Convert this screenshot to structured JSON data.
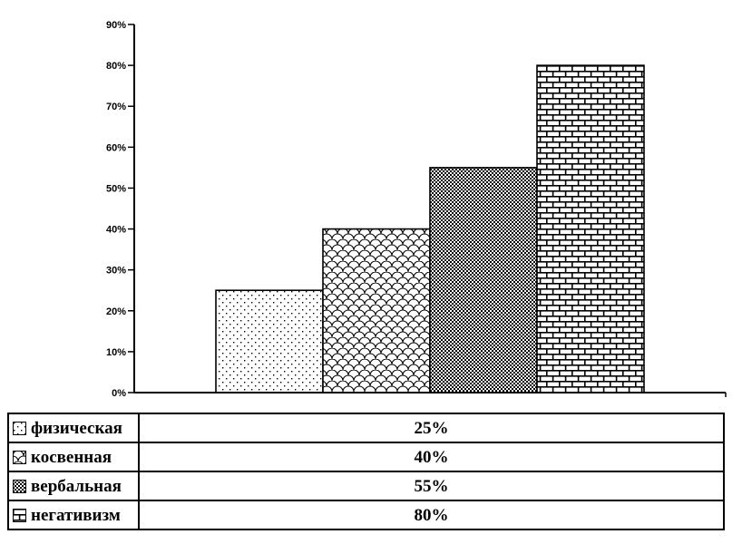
{
  "chart_data": {
    "type": "bar",
    "title": "",
    "xlabel": "",
    "ylabel": "",
    "categories": [
      "физическая",
      "косвенная",
      "вербальная",
      "негативизм"
    ],
    "values": [
      25,
      40,
      55,
      80
    ],
    "value_unit": "%",
    "ylim": [
      0,
      90
    ],
    "ytick_step": 10,
    "ytick_labels": [
      "0%",
      "10%",
      "20%",
      "30%",
      "40%",
      "50%",
      "60%",
      "70%",
      "80%",
      "90%"
    ],
    "patterns": [
      "dots",
      "scales",
      "checker",
      "brick"
    ],
    "grid": false,
    "legend_position": "bottom-table",
    "bar_fill_color": "#ffffff",
    "line_color": "#000000",
    "background_color": "#ffffff"
  },
  "legend_table": {
    "rows": [
      {
        "label": "физическая",
        "value": "25%",
        "pattern": "dots",
        "swatch_icon": "dotted-pattern-swatch"
      },
      {
        "label": "косвенная",
        "value": "40%",
        "pattern": "scales",
        "swatch_icon": "scale-pattern-swatch"
      },
      {
        "label": "вербальная",
        "value": "55%",
        "pattern": "checker",
        "swatch_icon": "checker-pattern-swatch"
      },
      {
        "label": "негативизм",
        "value": "80%",
        "pattern": "brick",
        "swatch_icon": "brick-pattern-swatch"
      }
    ]
  }
}
